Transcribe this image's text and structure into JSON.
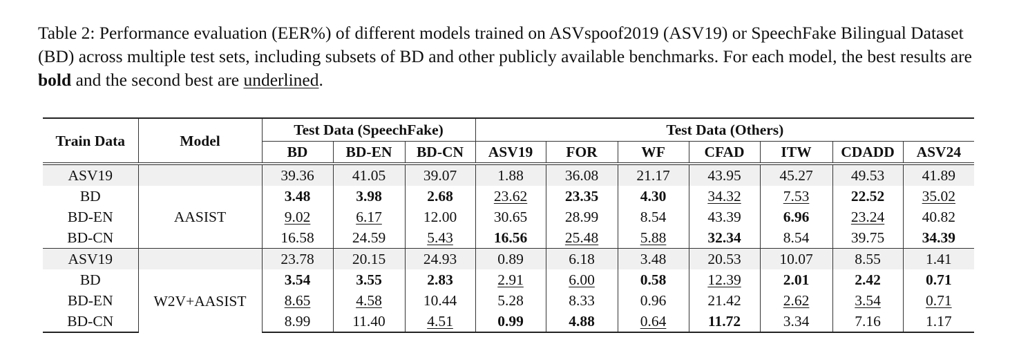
{
  "caption": {
    "prefix": "Table 2: Performance evaluation (EER%) of different models trained on ASVspoof2019 (ASV19) or SpeechFake Bilingual Dataset (BD) across multiple test sets, including subsets of BD and other publicly available benchmarks. For each model, the best results are ",
    "bold_word": "bold",
    "middle": " and the second best are ",
    "underline_word": "underlined",
    "suffix": "."
  },
  "headers": {
    "train_data": "Train Data",
    "model": "Model",
    "group_speechfake": "Test Data (SpeechFake)",
    "group_others": "Test Data (Others)",
    "columns": [
      "BD",
      "BD-EN",
      "BD-CN",
      "ASV19",
      "FOR",
      "WF",
      "CFAD",
      "ITW",
      "CDADD",
      "ASV24"
    ]
  },
  "blocks": [
    {
      "model": "AASIST",
      "rows": [
        {
          "train": "ASV19",
          "cells": [
            {
              "v": "39.36",
              "s": ""
            },
            {
              "v": "41.05",
              "s": ""
            },
            {
              "v": "39.07",
              "s": ""
            },
            {
              "v": "1.88",
              "s": ""
            },
            {
              "v": "36.08",
              "s": ""
            },
            {
              "v": "21.17",
              "s": ""
            },
            {
              "v": "43.95",
              "s": ""
            },
            {
              "v": "45.27",
              "s": ""
            },
            {
              "v": "49.53",
              "s": ""
            },
            {
              "v": "41.89",
              "s": ""
            }
          ]
        },
        {
          "train": "BD",
          "cells": [
            {
              "v": "3.48",
              "s": "b"
            },
            {
              "v": "3.98",
              "s": "b"
            },
            {
              "v": "2.68",
              "s": "b"
            },
            {
              "v": "23.62",
              "s": "u"
            },
            {
              "v": "23.35",
              "s": "b"
            },
            {
              "v": "4.30",
              "s": "b"
            },
            {
              "v": "34.32",
              "s": "u"
            },
            {
              "v": "7.53",
              "s": "u"
            },
            {
              "v": "22.52",
              "s": "b"
            },
            {
              "v": "35.02",
              "s": "u"
            }
          ]
        },
        {
          "train": "BD-EN",
          "cells": [
            {
              "v": "9.02",
              "s": "u"
            },
            {
              "v": "6.17",
              "s": "u"
            },
            {
              "v": "12.00",
              "s": ""
            },
            {
              "v": "30.65",
              "s": ""
            },
            {
              "v": "28.99",
              "s": ""
            },
            {
              "v": "8.54",
              "s": ""
            },
            {
              "v": "43.39",
              "s": ""
            },
            {
              "v": "6.96",
              "s": "b"
            },
            {
              "v": "23.24",
              "s": "u"
            },
            {
              "v": "40.82",
              "s": ""
            }
          ]
        },
        {
          "train": "BD-CN",
          "cells": [
            {
              "v": "16.58",
              "s": ""
            },
            {
              "v": "24.59",
              "s": ""
            },
            {
              "v": "5.43",
              "s": "u"
            },
            {
              "v": "16.56",
              "s": "b"
            },
            {
              "v": "25.48",
              "s": "u"
            },
            {
              "v": "5.88",
              "s": "u"
            },
            {
              "v": "32.34",
              "s": "b"
            },
            {
              "v": "8.54",
              "s": ""
            },
            {
              "v": "39.75",
              "s": ""
            },
            {
              "v": "34.39",
              "s": "b"
            }
          ]
        }
      ]
    },
    {
      "model": "W2V+AASIST",
      "rows": [
        {
          "train": "ASV19",
          "cells": [
            {
              "v": "23.78",
              "s": ""
            },
            {
              "v": "20.15",
              "s": ""
            },
            {
              "v": "24.93",
              "s": ""
            },
            {
              "v": "0.89",
              "s": ""
            },
            {
              "v": "6.18",
              "s": ""
            },
            {
              "v": "3.48",
              "s": ""
            },
            {
              "v": "20.53",
              "s": ""
            },
            {
              "v": "10.07",
              "s": ""
            },
            {
              "v": "8.55",
              "s": ""
            },
            {
              "v": "1.41",
              "s": ""
            }
          ]
        },
        {
          "train": "BD",
          "cells": [
            {
              "v": "3.54",
              "s": "b"
            },
            {
              "v": "3.55",
              "s": "b"
            },
            {
              "v": "2.83",
              "s": "b"
            },
            {
              "v": "2.91",
              "s": "u"
            },
            {
              "v": "6.00",
              "s": "u"
            },
            {
              "v": "0.58",
              "s": "b"
            },
            {
              "v": "12.39",
              "s": "u"
            },
            {
              "v": "2.01",
              "s": "b"
            },
            {
              "v": "2.42",
              "s": "b"
            },
            {
              "v": "0.71",
              "s": "b"
            }
          ]
        },
        {
          "train": "BD-EN",
          "cells": [
            {
              "v": "8.65",
              "s": "u"
            },
            {
              "v": "4.58",
              "s": "u"
            },
            {
              "v": "10.44",
              "s": ""
            },
            {
              "v": "5.28",
              "s": ""
            },
            {
              "v": "8.33",
              "s": ""
            },
            {
              "v": "0.96",
              "s": ""
            },
            {
              "v": "21.42",
              "s": ""
            },
            {
              "v": "2.62",
              "s": "u"
            },
            {
              "v": "3.54",
              "s": "u"
            },
            {
              "v": "0.71",
              "s": "u"
            }
          ]
        },
        {
          "train": "BD-CN",
          "cells": [
            {
              "v": "8.99",
              "s": ""
            },
            {
              "v": "11.40",
              "s": ""
            },
            {
              "v": "4.51",
              "s": "u"
            },
            {
              "v": "0.99",
              "s": "b"
            },
            {
              "v": "4.88",
              "s": "b"
            },
            {
              "v": "0.64",
              "s": "u"
            },
            {
              "v": "11.72",
              "s": "b"
            },
            {
              "v": "3.34",
              "s": ""
            },
            {
              "v": "7.16",
              "s": ""
            },
            {
              "v": "1.17",
              "s": ""
            }
          ]
        }
      ]
    }
  ]
}
